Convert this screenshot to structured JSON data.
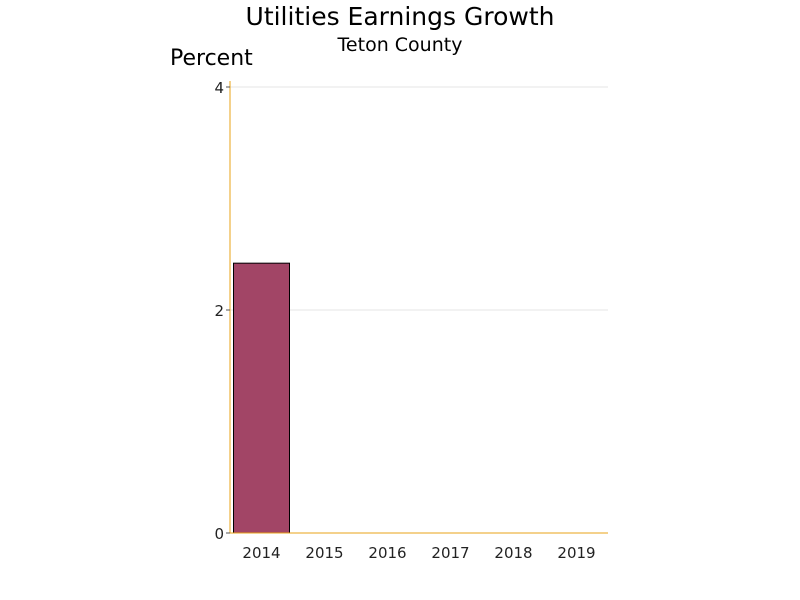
{
  "chart_data": {
    "type": "bar",
    "title": "Utilities Earnings Growth",
    "subtitle": "Teton County",
    "ylabel": "Percent",
    "xlabel": "",
    "categories": [
      "2014",
      "2015",
      "2016",
      "2017",
      "2018",
      "2019"
    ],
    "values": [
      2.42,
      0,
      0,
      0,
      0,
      0
    ],
    "ylim": [
      0,
      4
    ],
    "yticks": [
      0,
      2,
      4
    ],
    "grid": true,
    "colors": {
      "bar": "#a24566",
      "bar_outline": "#000000",
      "axis": "#e8a317",
      "grid": "#e4e4e4"
    }
  }
}
